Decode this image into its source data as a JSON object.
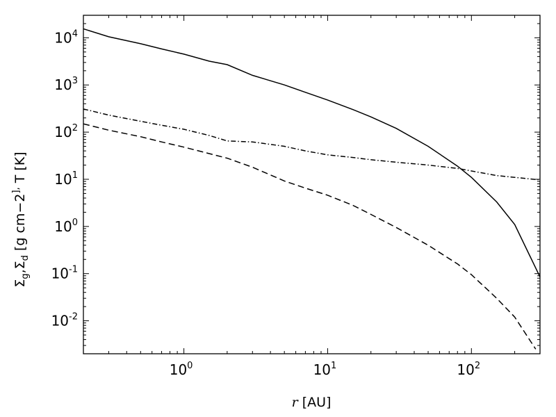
{
  "chart_data": {
    "type": "line",
    "xlabel": "r [AU]",
    "ylabel": "Σg,Σd [g cm−2], T [K]",
    "xscale": "log",
    "yscale": "log",
    "xlim": [
      0.2,
      300
    ],
    "ylim": [
      0.002,
      30000
    ],
    "grid": false,
    "x_ticks": [
      {
        "base": "10",
        "exp": "0",
        "value": 1
      },
      {
        "base": "10",
        "exp": "1",
        "value": 10
      },
      {
        "base": "10",
        "exp": "2",
        "value": 100
      }
    ],
    "y_ticks": [
      {
        "base": "10",
        "exp": "-2",
        "value": 0.01
      },
      {
        "base": "10",
        "exp": "-1",
        "value": 0.1
      },
      {
        "base": "10",
        "exp": "0",
        "value": 1
      },
      {
        "base": "10",
        "exp": "1",
        "value": 10
      },
      {
        "base": "10",
        "exp": "2",
        "value": 100
      },
      {
        "base": "10",
        "exp": "3",
        "value": 1000
      },
      {
        "base": "10",
        "exp": "4",
        "value": 10000
      }
    ],
    "series": [
      {
        "style": "solid",
        "x": [
          0.2,
          0.3,
          0.5,
          0.7,
          1,
          1.5,
          2,
          3,
          5,
          7,
          10,
          15,
          20,
          30,
          50,
          80,
          100,
          150,
          200,
          300
        ],
        "y": [
          15500,
          10500,
          7500,
          5800,
          4500,
          3200,
          2700,
          1600,
          1000,
          700,
          480,
          300,
          210,
          120,
          50,
          19,
          11,
          3.3,
          1.1,
          0.085
        ]
      },
      {
        "style": "dashdot",
        "x": [
          0.2,
          0.3,
          0.5,
          0.7,
          1,
          1.5,
          2,
          3,
          5,
          7,
          10,
          15,
          20,
          30,
          50,
          80,
          100,
          150,
          200,
          300
        ],
        "y": [
          310,
          230,
          170,
          140,
          115,
          85,
          65,
          62,
          50,
          40,
          33,
          29,
          26,
          23,
          20,
          17,
          15,
          12,
          11,
          9.7
        ]
      },
      {
        "style": "dashed",
        "x": [
          0.2,
          0.3,
          0.5,
          0.7,
          1,
          1.5,
          2,
          3,
          5,
          7,
          10,
          15,
          20,
          30,
          50,
          80,
          100,
          150,
          200,
          280
        ],
        "y": [
          150,
          110,
          80,
          62,
          48,
          35,
          28,
          18,
          9.2,
          6.5,
          4.6,
          2.8,
          1.8,
          0.95,
          0.4,
          0.16,
          0.095,
          0.03,
          0.012,
          0.0025
        ]
      }
    ]
  }
}
